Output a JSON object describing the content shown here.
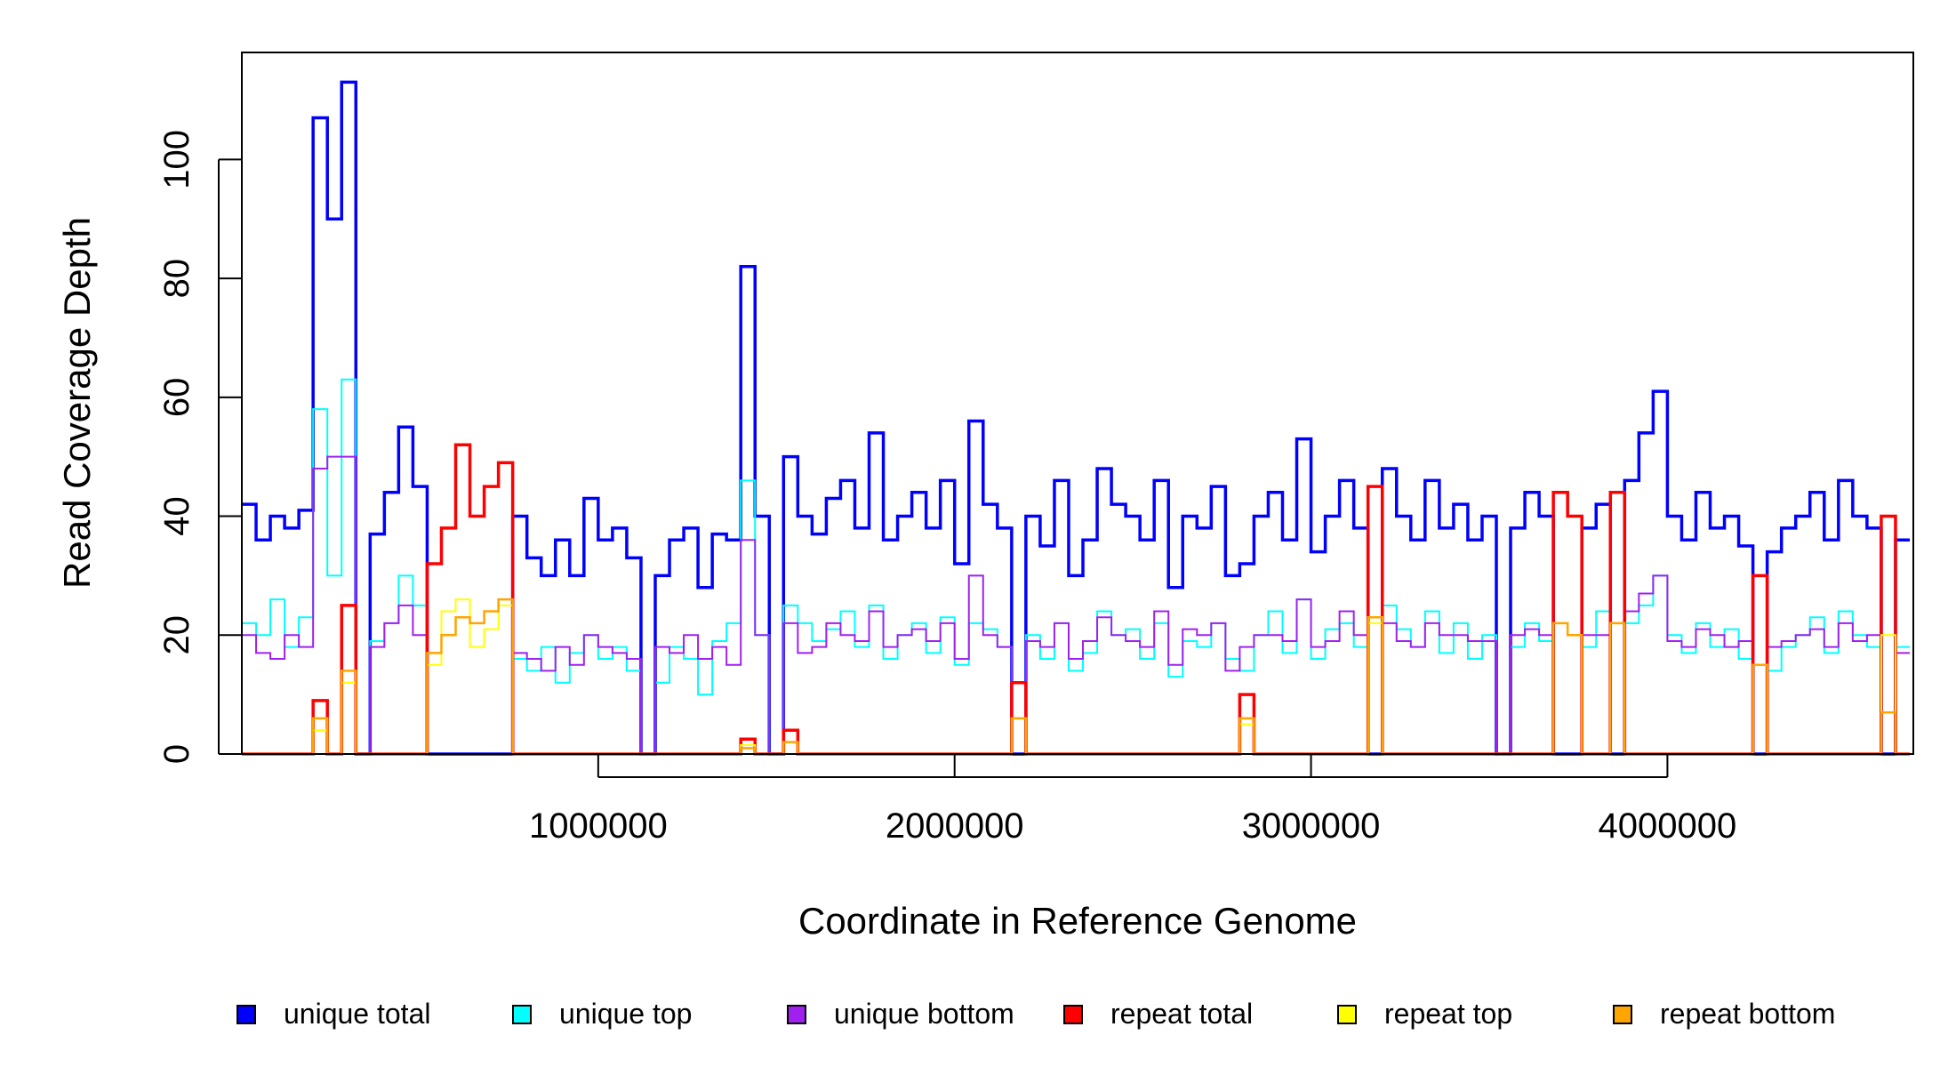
{
  "chart_data": {
    "type": "line",
    "title": "",
    "xlabel": "Coordinate in Reference Genome",
    "ylabel": "Read Coverage Depth",
    "xlim": [
      0,
      4690000
    ],
    "ylim": [
      0,
      118
    ],
    "xticks": [
      1000000,
      2000000,
      3000000,
      4000000
    ],
    "xtick_labels": [
      "1000000",
      "2000000",
      "3000000",
      "4000000"
    ],
    "yticks": [
      0,
      20,
      40,
      60,
      80,
      100
    ],
    "ytick_labels": [
      "0",
      "20",
      "40",
      "60",
      "80",
      "100"
    ],
    "grid": false,
    "legend_position": "bottom",
    "bin_size": 40000,
    "series": [
      {
        "name": "unique total",
        "color": "#0000ff",
        "values": [
          42,
          36,
          40,
          38,
          41,
          107,
          90,
          113,
          0,
          37,
          44,
          55,
          45,
          0,
          0,
          0,
          0,
          0,
          0,
          40,
          33,
          30,
          36,
          30,
          43,
          36,
          38,
          33,
          0,
          30,
          36,
          38,
          28,
          37,
          36,
          82,
          40,
          0,
          50,
          40,
          37,
          43,
          46,
          38,
          54,
          36,
          40,
          44,
          38,
          46,
          32,
          56,
          42,
          38,
          0,
          40,
          35,
          46,
          30,
          36,
          48,
          42,
          40,
          36,
          46,
          28,
          40,
          38,
          45,
          30,
          32,
          40,
          44,
          36,
          53,
          34,
          40,
          46,
          38,
          0,
          48,
          40,
          36,
          46,
          38,
          42,
          36,
          40,
          0,
          38,
          44,
          40,
          0,
          0,
          38,
          42,
          0,
          46,
          54,
          61,
          40,
          36,
          44,
          38,
          40,
          35,
          0,
          34,
          38,
          40,
          44,
          36,
          46,
          40,
          38,
          0,
          36
        ]
      },
      {
        "name": "unique top",
        "color": "#00ffff",
        "values": [
          22,
          20,
          26,
          18,
          23,
          58,
          30,
          63,
          0,
          19,
          22,
          30,
          25,
          0,
          0,
          0,
          0,
          0,
          0,
          16,
          14,
          18,
          12,
          17,
          20,
          16,
          18,
          14,
          0,
          12,
          18,
          16,
          10,
          19,
          22,
          46,
          20,
          0,
          25,
          22,
          19,
          21,
          24,
          18,
          25,
          16,
          20,
          22,
          17,
          23,
          15,
          22,
          21,
          18,
          0,
          20,
          16,
          22,
          14,
          17,
          24,
          20,
          21,
          16,
          22,
          13,
          19,
          18,
          22,
          16,
          14,
          20,
          24,
          17,
          26,
          16,
          21,
          22,
          18,
          0,
          25,
          21,
          18,
          24,
          17,
          22,
          16,
          20,
          0,
          18,
          22,
          19,
          0,
          0,
          18,
          24,
          0,
          22,
          25,
          30,
          20,
          17,
          22,
          18,
          21,
          16,
          0,
          14,
          18,
          20,
          23,
          17,
          24,
          20,
          18,
          0,
          18
        ]
      },
      {
        "name": "unique bottom",
        "color": "#a020f0",
        "values": [
          20,
          17,
          16,
          20,
          18,
          48,
          50,
          50,
          0,
          18,
          22,
          25,
          20,
          0,
          0,
          0,
          0,
          0,
          0,
          17,
          16,
          14,
          18,
          15,
          20,
          18,
          17,
          16,
          0,
          18,
          17,
          20,
          16,
          18,
          15,
          36,
          20,
          0,
          22,
          17,
          18,
          22,
          20,
          19,
          24,
          18,
          20,
          21,
          19,
          22,
          16,
          30,
          20,
          18,
          0,
          19,
          18,
          22,
          16,
          19,
          23,
          20,
          19,
          18,
          24,
          15,
          21,
          20,
          22,
          14,
          18,
          20,
          20,
          19,
          26,
          18,
          19,
          24,
          20,
          0,
          22,
          19,
          18,
          22,
          20,
          20,
          19,
          19,
          0,
          20,
          21,
          20,
          0,
          0,
          20,
          20,
          0,
          24,
          27,
          30,
          19,
          18,
          21,
          20,
          18,
          19,
          0,
          18,
          19,
          20,
          21,
          18,
          22,
          19,
          20,
          0,
          17
        ]
      },
      {
        "name": "repeat total",
        "color": "#ff0000",
        "values": [
          0,
          0,
          0,
          0,
          0,
          9,
          0,
          25,
          0,
          0,
          0,
          0,
          0,
          32,
          38,
          52,
          40,
          45,
          49,
          0,
          0,
          0,
          0,
          0,
          0,
          0,
          0,
          0,
          0,
          0,
          0,
          0,
          0,
          0,
          0,
          2.5,
          0,
          0,
          4,
          0,
          0,
          0,
          0,
          0,
          0,
          0,
          0,
          0,
          0,
          0,
          0,
          0,
          0,
          0,
          12,
          0,
          0,
          0,
          0,
          0,
          0,
          0,
          0,
          0,
          0,
          0,
          0,
          0,
          0,
          0,
          10,
          0,
          0,
          0,
          0,
          0,
          0,
          0,
          0,
          45,
          0,
          0,
          0,
          0,
          0,
          0,
          0,
          0,
          0,
          0,
          0,
          0,
          44,
          40,
          0,
          0,
          44,
          0,
          0,
          0,
          0,
          0,
          0,
          0,
          0,
          0,
          30,
          0,
          0,
          0,
          0,
          0,
          0,
          0,
          0,
          40,
          0
        ]
      },
      {
        "name": "repeat top",
        "color": "#ffff00",
        "values": [
          0,
          0,
          0,
          0,
          0,
          4,
          0,
          12,
          0,
          0,
          0,
          0,
          0,
          15,
          24,
          26,
          18,
          21,
          25,
          0,
          0,
          0,
          0,
          0,
          0,
          0,
          0,
          0,
          0,
          0,
          0,
          0,
          0,
          0,
          0,
          1.5,
          0,
          0,
          2,
          0,
          0,
          0,
          0,
          0,
          0,
          0,
          0,
          0,
          0,
          0,
          0,
          0,
          0,
          0,
          6,
          0,
          0,
          0,
          0,
          0,
          0,
          0,
          0,
          0,
          0,
          0,
          0,
          0,
          0,
          0,
          5,
          0,
          0,
          0,
          0,
          0,
          0,
          0,
          0,
          22,
          0,
          0,
          0,
          0,
          0,
          0,
          0,
          0,
          0,
          0,
          0,
          0,
          22,
          20,
          0,
          0,
          22,
          0,
          0,
          0,
          0,
          0,
          0,
          0,
          0,
          0,
          15,
          0,
          0,
          0,
          0,
          0,
          0,
          0,
          0,
          20,
          0
        ]
      },
      {
        "name": "repeat bottom",
        "color": "#ffa500",
        "values": [
          0,
          0,
          0,
          0,
          0,
          6,
          0,
          14,
          0,
          0,
          0,
          0,
          0,
          17,
          20,
          23,
          22,
          24,
          26,
          0,
          0,
          0,
          0,
          0,
          0,
          0,
          0,
          0,
          0,
          0,
          0,
          0,
          0,
          0,
          0,
          1,
          0,
          0,
          2,
          0,
          0,
          0,
          0,
          0,
          0,
          0,
          0,
          0,
          0,
          0,
          0,
          0,
          0,
          0,
          6,
          0,
          0,
          0,
          0,
          0,
          0,
          0,
          0,
          0,
          0,
          0,
          0,
          0,
          0,
          0,
          6,
          0,
          0,
          0,
          0,
          0,
          0,
          0,
          0,
          23,
          0,
          0,
          0,
          0,
          0,
          0,
          0,
          0,
          0,
          0,
          0,
          0,
          22,
          20,
          0,
          0,
          22,
          0,
          0,
          0,
          0,
          0,
          0,
          0,
          0,
          0,
          15,
          0,
          0,
          0,
          0,
          0,
          0,
          0,
          0,
          7,
          0
        ]
      }
    ]
  }
}
